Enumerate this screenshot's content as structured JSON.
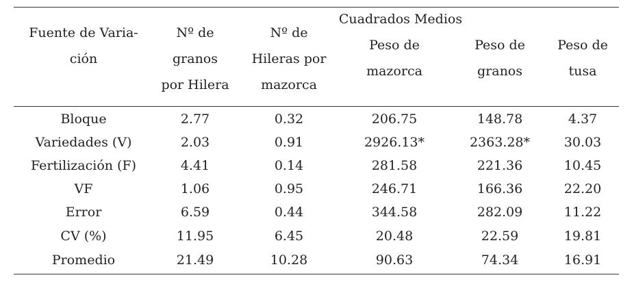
{
  "group_header": "Cuadrados Medios",
  "columns": [
    {
      "lines": [
        "Fuente de Varia-",
        "ción"
      ]
    },
    {
      "lines": [
        "Nº de",
        "granos",
        "por Hilera"
      ]
    },
    {
      "lines": [
        "Nº de",
        "Hileras por",
        "mazorca"
      ]
    },
    {
      "lines": [
        "Peso de",
        "mazorca"
      ]
    },
    {
      "lines": [
        "Peso de",
        "granos"
      ]
    },
    {
      "lines": [
        "Peso de",
        "tusa"
      ]
    }
  ],
  "rows": [
    [
      "Bloque",
      "2.77",
      "0.32",
      "206.75",
      "148.78",
      "4.37"
    ],
    [
      "Variedades (V)",
      "2.03",
      "0.91",
      "2926.13*",
      "2363.28*",
      "30.03"
    ],
    [
      "Fertilización (F)",
      "4.41",
      "0.14",
      "281.58",
      "221.36",
      "10.45"
    ],
    [
      "VF",
      "1.06",
      "0.95",
      "246.71",
      "166.36",
      "22.20"
    ],
    [
      "Error",
      "6.59",
      "0.44",
      "344.58",
      "282.09",
      "11.22"
    ],
    [
      "CV (%)",
      "11.95",
      "6.45",
      "20.48",
      "22.59",
      "19.81"
    ],
    [
      "Promedio",
      "21.49",
      "10.28",
      "90.63",
      "74.34",
      "16.91"
    ]
  ]
}
